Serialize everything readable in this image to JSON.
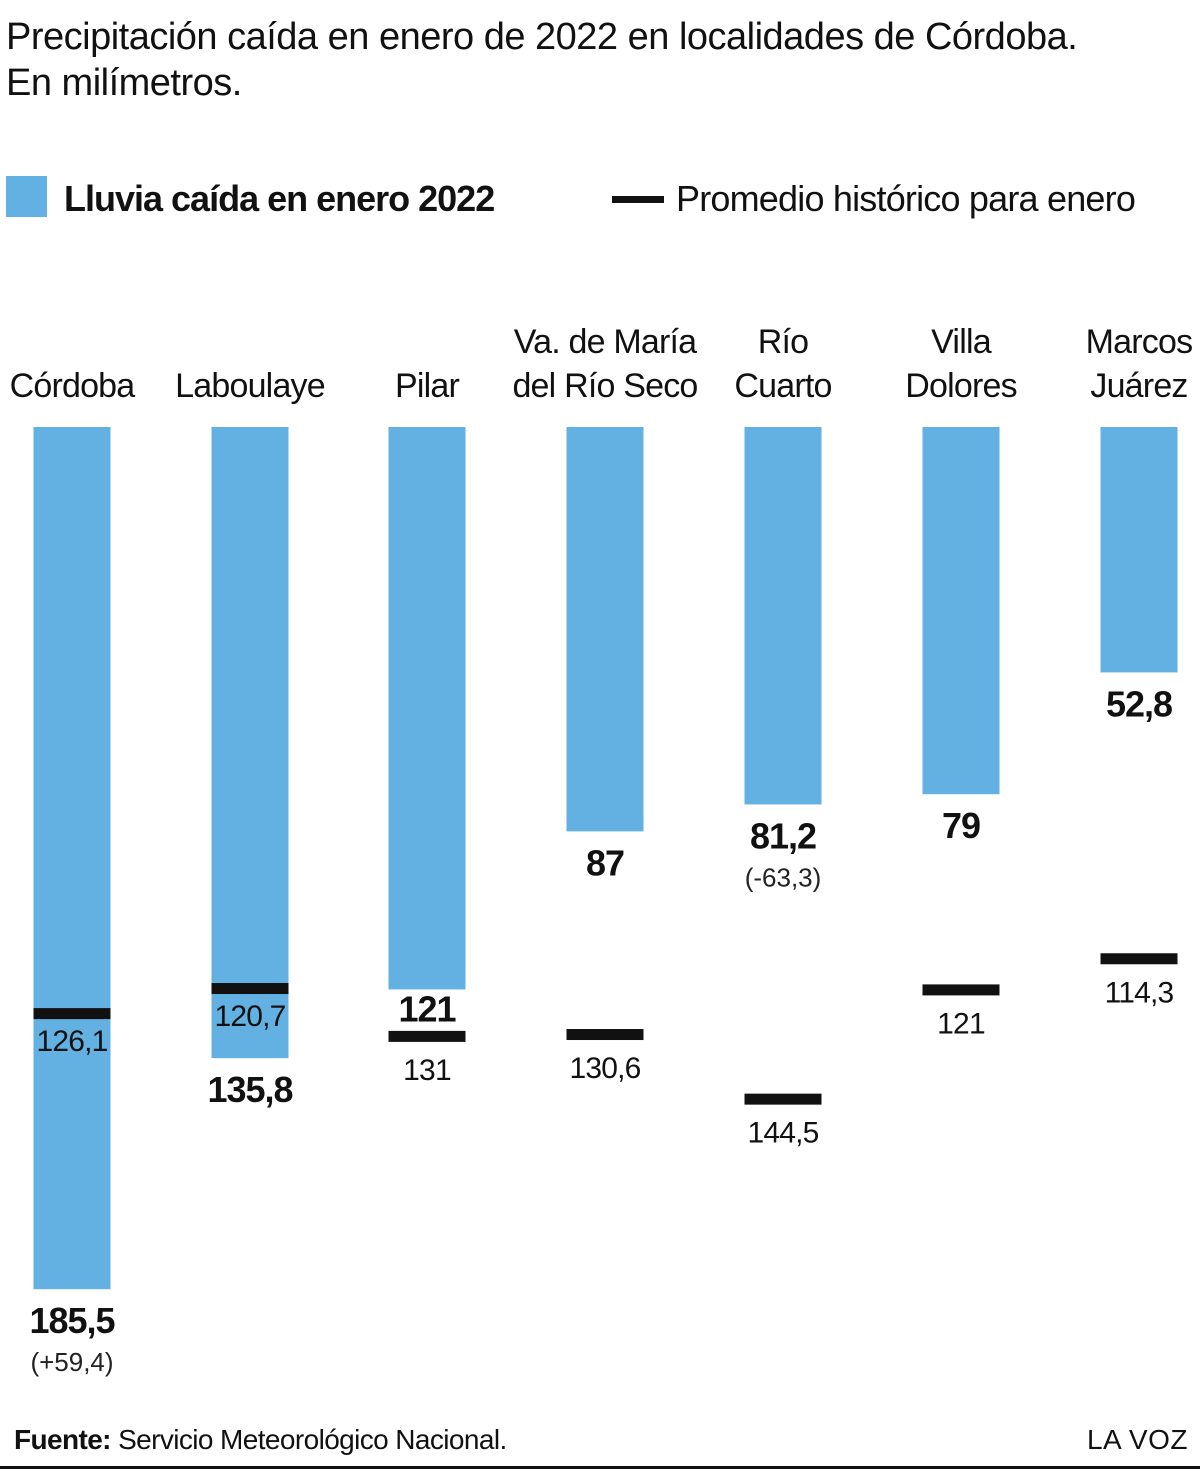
{
  "title_line1": "Precipitación caída en enero de 2022 en localidades de Córdoba.",
  "title_line2": "En milímetros.",
  "legend": {
    "rain_label": "Lluvia caída en enero 2022",
    "avg_label": "Promedio histórico para enero",
    "rain_color": "#62b1e2",
    "avg_color": "#111111"
  },
  "source_prefix": "Fuente:",
  "source_text": " Servicio Meteorológico Nacional.",
  "brand": "LA VOZ",
  "chart_data": {
    "type": "bar",
    "orientation": "vertical, bars hang downward from a common top baseline",
    "categories": [
      "Córdoba",
      "Laboulaye",
      "Pilar",
      "Va. de María del Río Seco",
      "Río Cuarto",
      "Villa Dolores",
      "Marcos Juárez"
    ],
    "category_lines": [
      [
        "Córdoba"
      ],
      [
        "Laboulaye"
      ],
      [
        "Pilar"
      ],
      [
        "Va. de María",
        "del Río Seco"
      ],
      [
        "Río",
        "Cuarto"
      ],
      [
        "Villa",
        "Dolores"
      ],
      [
        "Marcos",
        "Juárez"
      ]
    ],
    "series": [
      {
        "name": "Lluvia caída en enero 2022",
        "values": [
          185.5,
          135.8,
          121,
          87,
          81.2,
          79,
          52.8
        ],
        "labels": [
          "185,5",
          "135,8",
          "121",
          "87",
          "81,2",
          "79",
          "52,8"
        ]
      },
      {
        "name": "Promedio histórico para enero",
        "values": [
          126.1,
          120.7,
          131,
          130.6,
          144.5,
          121,
          114.3
        ],
        "labels": [
          "126,1",
          "120,7",
          "131",
          "130,6",
          "144,5",
          "121",
          "114,3"
        ]
      }
    ],
    "differences": [
      "(+59,4)",
      "",
      "",
      "",
      "(-63,3)",
      "",
      ""
    ],
    "ylim": [
      0,
      190
    ]
  }
}
